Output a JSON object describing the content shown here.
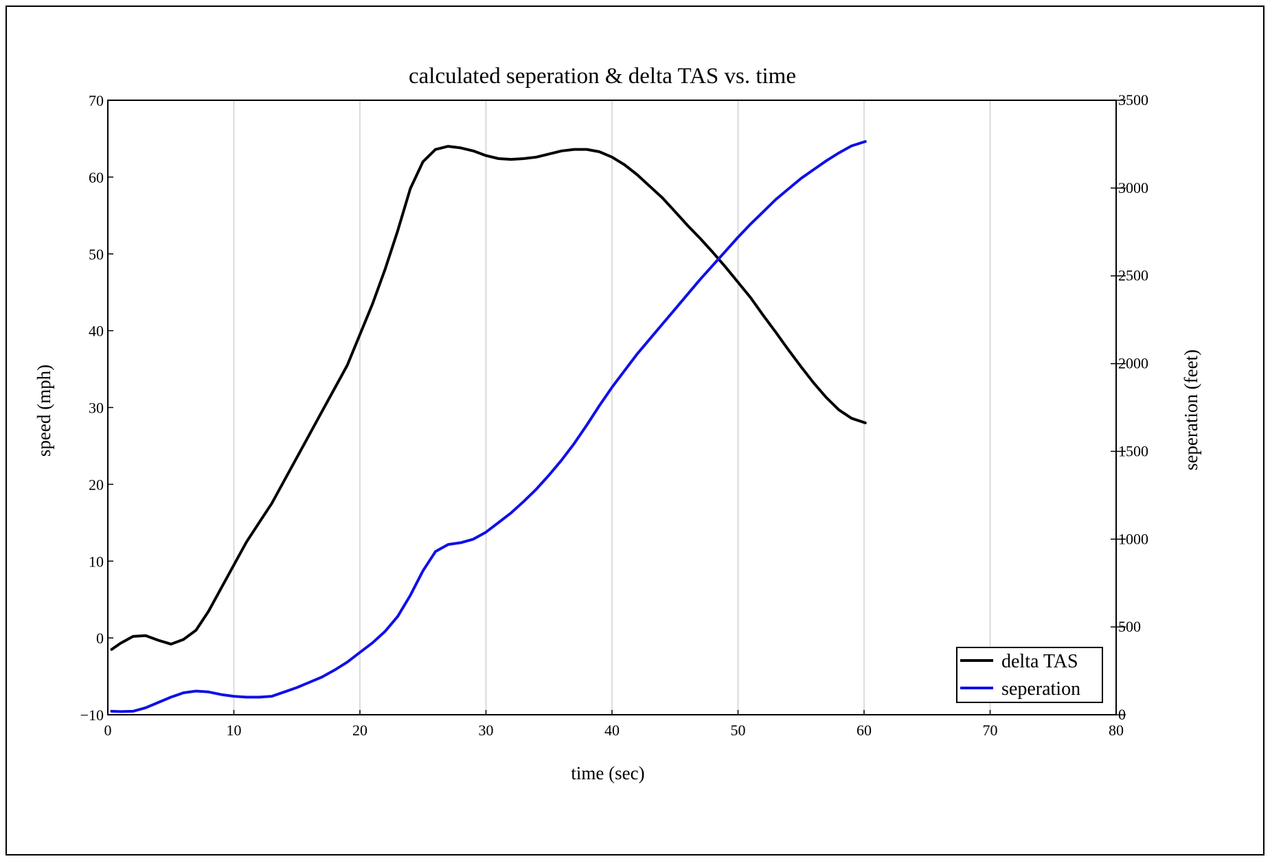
{
  "chart_data": {
    "type": "line",
    "title": "calculated seperation & delta TAS vs. time",
    "xlabel": "time (sec)",
    "ylabel": "speed (mph)",
    "y2label": "seperation (feet)",
    "xlim": [
      0,
      80
    ],
    "ylim": [
      -10,
      70
    ],
    "y2lim": [
      0,
      3500
    ],
    "x_ticks": [
      "0",
      "10",
      "20",
      "30",
      "40",
      "50",
      "60",
      "70",
      "80"
    ],
    "y_ticks": [
      "−10",
      "0",
      "10",
      "20",
      "30",
      "40",
      "50",
      "60",
      "70"
    ],
    "y2_ticks": [
      "0",
      "500",
      "1000",
      "1500",
      "2000",
      "2500",
      "3000",
      "3500"
    ],
    "grid": "vertical",
    "legend_position": "bottom-right",
    "colors": {
      "delta_tas": "#000000",
      "seperation": "#1010e8",
      "grid": "#d0d0d0"
    },
    "series": [
      {
        "name": "delta TAS",
        "axis": "left",
        "x": [
          0.3,
          1,
          2,
          3,
          4,
          5,
          6,
          7,
          8,
          9,
          10,
          11,
          12,
          13,
          14,
          15,
          16,
          17,
          18,
          19,
          20,
          21,
          22,
          23,
          24,
          25,
          26,
          27,
          28,
          29,
          30,
          31,
          32,
          33,
          34,
          35,
          36,
          37,
          38,
          39,
          40,
          41,
          42,
          43,
          44,
          45,
          46,
          47,
          48,
          49,
          50,
          51,
          52,
          53,
          54,
          55,
          56,
          57,
          58,
          59,
          60.1
        ],
        "y": [
          -1.5,
          -0.7,
          0.2,
          0.3,
          -0.3,
          -0.8,
          -0.2,
          1.0,
          3.5,
          6.5,
          9.5,
          12.5,
          15.0,
          17.5,
          20.5,
          23.5,
          26.5,
          29.5,
          32.5,
          35.5,
          39.5,
          43.5,
          48.0,
          53.0,
          58.5,
          62.0,
          63.6,
          64.0,
          63.8,
          63.4,
          62.8,
          62.4,
          62.3,
          62.4,
          62.6,
          63.0,
          63.4,
          63.6,
          63.6,
          63.3,
          62.6,
          61.6,
          60.3,
          58.8,
          57.3,
          55.5,
          53.7,
          52.0,
          50.2,
          48.3,
          46.3,
          44.3,
          42.0,
          39.8,
          37.5,
          35.3,
          33.2,
          31.3,
          29.7,
          28.6,
          28.0
        ]
      },
      {
        "name": "seperation",
        "axis": "right",
        "x": [
          0.3,
          1,
          2,
          3,
          4,
          5,
          6,
          7,
          8,
          9,
          10,
          11,
          12,
          13,
          14,
          15,
          16,
          17,
          18,
          19,
          20,
          21,
          22,
          23,
          24,
          25,
          26,
          27,
          28,
          29,
          30,
          31,
          32,
          33,
          34,
          35,
          36,
          37,
          38,
          39,
          40,
          41,
          42,
          43,
          44,
          45,
          46,
          47,
          48,
          49,
          50,
          51,
          52,
          53,
          54,
          55,
          56,
          57,
          58,
          59,
          60.1
        ],
        "y": [
          20,
          18,
          20,
          40,
          70,
          100,
          125,
          135,
          130,
          115,
          105,
          100,
          100,
          105,
          130,
          155,
          185,
          215,
          255,
          300,
          355,
          410,
          475,
          560,
          680,
          820,
          930,
          970,
          980,
          1000,
          1040,
          1095,
          1150,
          1215,
          1285,
          1365,
          1450,
          1545,
          1650,
          1760,
          1865,
          1960,
          2055,
          2140,
          2225,
          2310,
          2395,
          2480,
          2560,
          2640,
          2720,
          2795,
          2865,
          2935,
          2995,
          3055,
          3105,
          3155,
          3200,
          3240,
          3265
        ]
      }
    ]
  }
}
